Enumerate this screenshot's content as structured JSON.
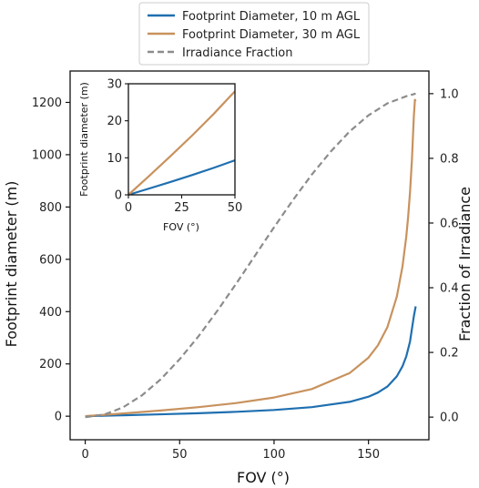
{
  "chart_data": [
    {
      "id": "main",
      "type": "line",
      "xlabel": "FOV (°)",
      "ylabel": "Footprint diameter (m)",
      "y2label": "Fraction of Irradiance",
      "xlim": [
        -8,
        182
      ],
      "ylim": [
        -90,
        1320
      ],
      "y2lim": [
        -0.07,
        1.07
      ],
      "xticks": [
        0,
        50,
        100,
        150
      ],
      "yticks": [
        0,
        200,
        400,
        600,
        800,
        1000,
        1200
      ],
      "y2ticks": [
        0.0,
        0.2,
        0.4,
        0.6,
        0.8,
        1.0
      ],
      "y2ticklabels": [
        "0.0",
        "0.2",
        "0.4",
        "0.6",
        "0.8",
        "1.0"
      ],
      "legend": {
        "placement": "top-center"
      },
      "series": [
        {
          "name": "Footprint Diameter, 10 m AGL",
          "color": "#1f6fb0",
          "axis": "left",
          "dash": "solid",
          "x": [
            0,
            20,
            40,
            60,
            80,
            100,
            120,
            140,
            150,
            155,
            160,
            165,
            168,
            170,
            172,
            174,
            175
          ],
          "y": [
            0,
            3.5,
            7.3,
            11.5,
            16.8,
            23.8,
            34.6,
            54.9,
            74.6,
            90.4,
            113.4,
            152.4,
            190.8,
            228.6,
            285.7,
            381.3,
            420
          ]
        },
        {
          "name": "Footprint Diameter, 30 m AGL",
          "color": "#c8925e",
          "axis": "left",
          "dash": "solid",
          "x": [
            0,
            20,
            40,
            60,
            80,
            100,
            120,
            140,
            150,
            155,
            160,
            165,
            168,
            170,
            171,
            172,
            173,
            174,
            174.6,
            175
          ],
          "y": [
            0,
            10.6,
            21.8,
            34.6,
            50.3,
            71.5,
            103.9,
            164.8,
            223.9,
            271.2,
            340.3,
            457.2,
            572.4,
            685.8,
            762.0,
            857.0,
            980.0,
            1144.0,
            1210,
            1205
          ]
        },
        {
          "name": "Irradiance Fraction",
          "color": "#8c8c8c",
          "axis": "right",
          "dash": "dashed",
          "x": [
            0,
            10,
            20,
            30,
            40,
            50,
            60,
            70,
            80,
            90,
            100,
            110,
            120,
            130,
            140,
            150,
            160,
            170,
            175
          ],
          "y": [
            0,
            0.0076,
            0.03,
            0.067,
            0.117,
            0.179,
            0.25,
            0.329,
            0.413,
            0.5,
            0.587,
            0.671,
            0.75,
            0.821,
            0.883,
            0.933,
            0.97,
            0.992,
            1.0
          ]
        }
      ]
    },
    {
      "id": "inset",
      "type": "line",
      "xlabel": "FOV (°)",
      "ylabel": "Footprint diameter (m)",
      "xlim": [
        0,
        50
      ],
      "ylim": [
        0,
        30
      ],
      "xticks": [
        0,
        25,
        50
      ],
      "yticks": [
        0,
        10,
        20,
        30
      ],
      "series": [
        {
          "color": "#1f6fb0",
          "x": [
            0,
            10,
            20,
            30,
            40,
            50
          ],
          "y": [
            0,
            1.75,
            3.53,
            5.36,
            7.28,
            9.33
          ]
        },
        {
          "color": "#c8925e",
          "x": [
            0,
            10,
            20,
            30,
            40,
            50
          ],
          "y": [
            0,
            5.25,
            10.58,
            16.08,
            21.84,
            27.98
          ]
        }
      ]
    }
  ]
}
